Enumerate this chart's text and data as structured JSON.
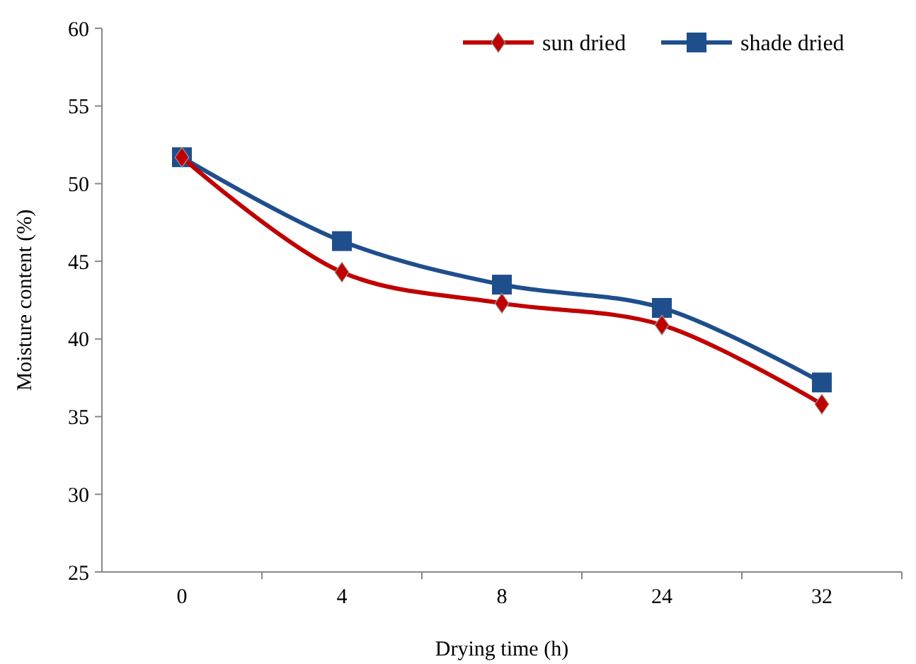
{
  "chart_data": {
    "type": "line",
    "xlabel": "Drying time (h)",
    "ylabel": "Moisture content (%)",
    "categories": [
      "0",
      "4",
      "8",
      "24",
      "32"
    ],
    "series": [
      {
        "name": "sun dried",
        "color": "#c00000",
        "marker": "diamond",
        "values": [
          51.7,
          44.3,
          42.3,
          40.9,
          35.8
        ]
      },
      {
        "name": "shade dried",
        "color": "#1f4e8c",
        "marker": "square",
        "values": [
          51.7,
          46.3,
          43.5,
          42.0,
          37.2
        ]
      }
    ],
    "ylim": [
      25,
      60
    ],
    "yticks": [
      25,
      30,
      35,
      40,
      45,
      50,
      55,
      60
    ],
    "grid": false,
    "legend": "top right",
    "line_style": "solid"
  }
}
